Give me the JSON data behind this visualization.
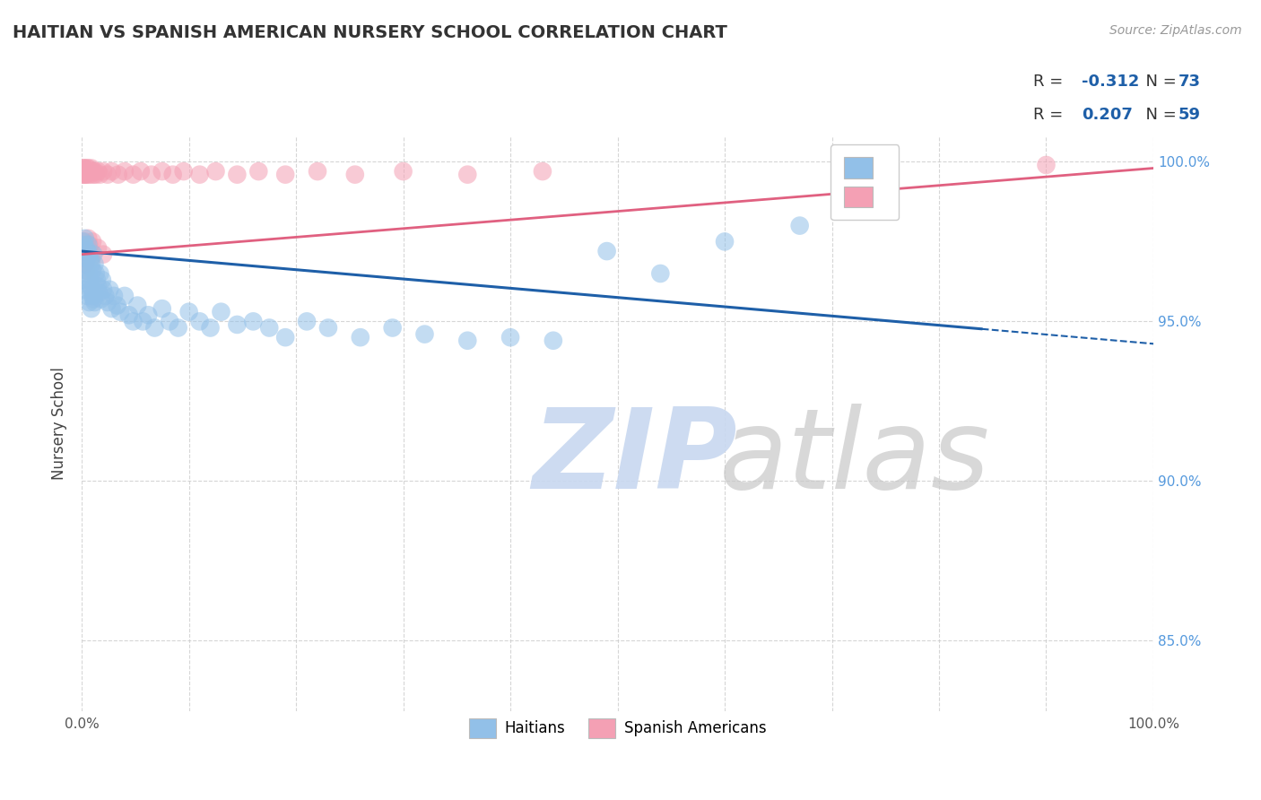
{
  "title": "HAITIAN VS SPANISH AMERICAN NURSERY SCHOOL CORRELATION CHART",
  "source": "Source: ZipAtlas.com",
  "ylabel": "Nursery School",
  "legend_blue_r": -0.312,
  "legend_blue_n": 73,
  "legend_pink_r": 0.207,
  "legend_pink_n": 59,
  "blue_color": "#92C0E8",
  "pink_color": "#F4A0B4",
  "blue_line_color": "#1E5FA8",
  "pink_line_color": "#E06080",
  "blue_line_solid_end": 0.84,
  "blue_line_dash_start": 0.84,
  "blue_line_dash_end": 1.02,
  "blue_line_y0": 0.972,
  "blue_line_y1": 0.943,
  "pink_line_y0": 0.971,
  "pink_line_y1": 0.998,
  "xlim": [
    0.0,
    1.0
  ],
  "ylim": [
    0.828,
    1.008
  ],
  "yticks": [
    0.85,
    0.9,
    0.95,
    1.0
  ],
  "grid_color": "#CCCCCC",
  "background_color": "#FFFFFF",
  "figsize": [
    14.06,
    8.92
  ],
  "dpi": 100,
  "blue_x": [
    0.001,
    0.002,
    0.002,
    0.003,
    0.003,
    0.004,
    0.004,
    0.005,
    0.005,
    0.006,
    0.006,
    0.007,
    0.007,
    0.008,
    0.008,
    0.009,
    0.009,
    0.01,
    0.01,
    0.011,
    0.011,
    0.012,
    0.012,
    0.013,
    0.014,
    0.015,
    0.016,
    0.017,
    0.018,
    0.019,
    0.02,
    0.022,
    0.024,
    0.026,
    0.028,
    0.03,
    0.033,
    0.036,
    0.04,
    0.044,
    0.048,
    0.052,
    0.057,
    0.062,
    0.068,
    0.075,
    0.082,
    0.09,
    0.1,
    0.11,
    0.12,
    0.13,
    0.145,
    0.16,
    0.175,
    0.19,
    0.21,
    0.23,
    0.26,
    0.29,
    0.32,
    0.36,
    0.4,
    0.44,
    0.49,
    0.54,
    0.6,
    0.67,
    0.001,
    0.003,
    0.005,
    0.007,
    0.009
  ],
  "blue_y": [
    0.975,
    0.974,
    0.972,
    0.976,
    0.97,
    0.973,
    0.968,
    0.972,
    0.966,
    0.974,
    0.965,
    0.971,
    0.963,
    0.969,
    0.961,
    0.968,
    0.96,
    0.966,
    0.958,
    0.971,
    0.957,
    0.968,
    0.956,
    0.965,
    0.963,
    0.961,
    0.959,
    0.965,
    0.957,
    0.963,
    0.96,
    0.958,
    0.956,
    0.96,
    0.954,
    0.958,
    0.955,
    0.953,
    0.958,
    0.952,
    0.95,
    0.955,
    0.95,
    0.952,
    0.948,
    0.954,
    0.95,
    0.948,
    0.953,
    0.95,
    0.948,
    0.953,
    0.949,
    0.95,
    0.948,
    0.945,
    0.95,
    0.948,
    0.945,
    0.948,
    0.946,
    0.944,
    0.945,
    0.944,
    0.972,
    0.965,
    0.975,
    0.98,
    0.963,
    0.96,
    0.958,
    0.956,
    0.954
  ],
  "pink_x": [
    0.001,
    0.001,
    0.001,
    0.002,
    0.002,
    0.002,
    0.003,
    0.003,
    0.003,
    0.004,
    0.004,
    0.005,
    0.005,
    0.006,
    0.006,
    0.007,
    0.008,
    0.009,
    0.01,
    0.011,
    0.012,
    0.013,
    0.015,
    0.017,
    0.02,
    0.024,
    0.028,
    0.034,
    0.04,
    0.048,
    0.055,
    0.065,
    0.075,
    0.085,
    0.095,
    0.11,
    0.125,
    0.145,
    0.165,
    0.19,
    0.22,
    0.255,
    0.3,
    0.36,
    0.43,
    0.003,
    0.004,
    0.005,
    0.006,
    0.007,
    0.008,
    0.009,
    0.01,
    0.015,
    0.02,
    0.003,
    0.004,
    0.005,
    0.9
  ],
  "pink_y": [
    0.998,
    0.997,
    0.996,
    0.998,
    0.997,
    0.996,
    0.998,
    0.997,
    0.996,
    0.997,
    0.996,
    0.998,
    0.997,
    0.996,
    0.998,
    0.997,
    0.996,
    0.998,
    0.997,
    0.996,
    0.997,
    0.996,
    0.997,
    0.996,
    0.997,
    0.996,
    0.997,
    0.996,
    0.997,
    0.996,
    0.997,
    0.996,
    0.997,
    0.996,
    0.997,
    0.996,
    0.997,
    0.996,
    0.997,
    0.996,
    0.997,
    0.996,
    0.997,
    0.996,
    0.997,
    0.975,
    0.973,
    0.971,
    0.976,
    0.974,
    0.972,
    0.97,
    0.975,
    0.973,
    0.971,
    0.968,
    0.966,
    0.97,
    0.999
  ],
  "watermark_zip_color": "#C8D8F0",
  "watermark_atlas_color": "#C8C8C8"
}
